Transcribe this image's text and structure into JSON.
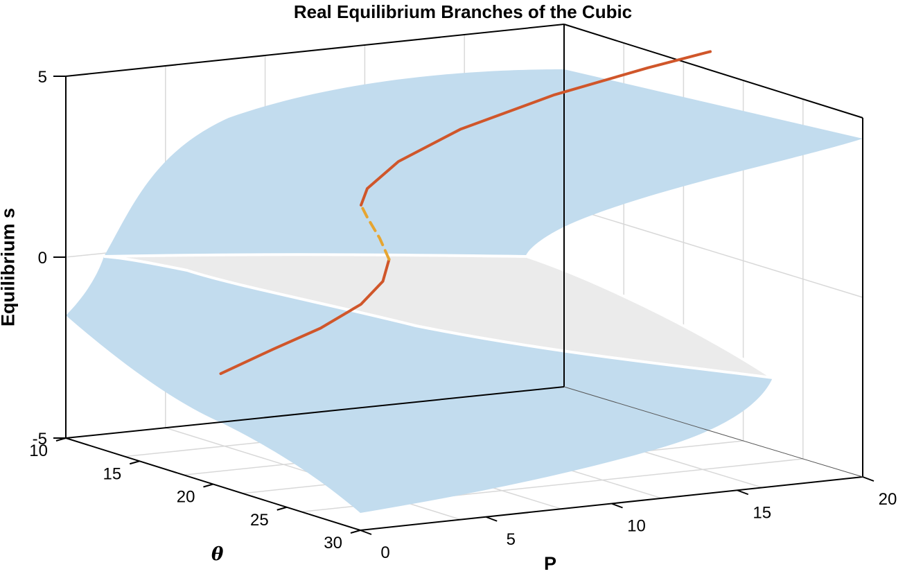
{
  "chart_data": {
    "type": "surface",
    "title": "Real Equilibrium Branches of the Cubic",
    "xlabel": "P",
    "ylabel": "θ",
    "zlabel": "Equilibrium s",
    "x_ticks": [
      "0",
      "5",
      "10",
      "15",
      "20"
    ],
    "y_ticks": [
      "10",
      "15",
      "20",
      "25",
      "30"
    ],
    "z_ticks": [
      "-5",
      "0",
      "5"
    ],
    "xlim": [
      0,
      20
    ],
    "ylim": [
      10,
      30
    ],
    "zlim": [
      -5,
      5
    ],
    "grid": true,
    "surface_color": "#c2dcee",
    "fold_region_color": "#e8e8e8",
    "series": [
      {
        "style": "solid",
        "color": "#d0562a",
        "points": [
          [
            0.3,
            -3.9
          ],
          [
            2,
            -3.3
          ],
          [
            3.5,
            -2.8
          ],
          [
            4.8,
            -2.2
          ],
          [
            5.5,
            -1.6
          ],
          [
            5.7,
            -1.0
          ]
        ]
      },
      {
        "style": "dashed",
        "color": "#e6a531",
        "points": [
          [
            5.7,
            -1.0
          ],
          [
            5.4,
            -0.4
          ],
          [
            5.0,
            0.2
          ],
          [
            4.8,
            0.55
          ]
        ]
      },
      {
        "style": "solid",
        "color": "#d0562a",
        "points": [
          [
            4.8,
            0.55
          ],
          [
            5.0,
            1.0
          ],
          [
            6.0,
            1.7
          ],
          [
            8.0,
            2.5
          ],
          [
            11.0,
            3.3
          ],
          [
            14.0,
            3.9
          ],
          [
            16.0,
            4.25
          ]
        ]
      }
    ]
  }
}
